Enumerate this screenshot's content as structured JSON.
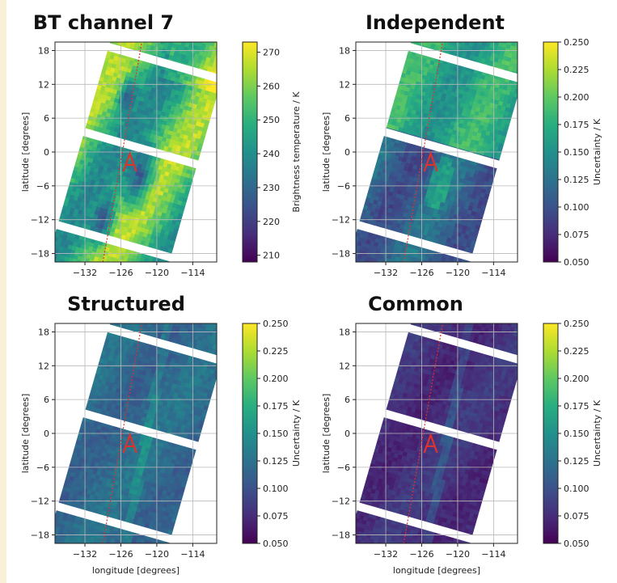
{
  "colormap": "viridis",
  "track_color": "#e0312a",
  "chart_data": [
    {
      "type": "heatmap",
      "title": "BT channel 7",
      "xlabel": "",
      "ylabel": "latitude [degrees]",
      "xticks": [
        "−132",
        "−126",
        "−120",
        "−114"
      ],
      "xtick_values": [
        -132,
        -126,
        -120,
        -114
      ],
      "yticks": [
        "18",
        "12",
        "6",
        "0",
        "−6",
        "−12",
        "−18"
      ],
      "ytick_values": [
        18,
        12,
        6,
        0,
        -6,
        -12,
        -18
      ],
      "xlim": [
        -137,
        -110
      ],
      "ylim": [
        -19.5,
        19.5
      ],
      "colorbar": {
        "label": "Brightness temperature / K",
        "ticks": [
          "270",
          "260",
          "250",
          "240",
          "230",
          "220",
          "210"
        ],
        "tick_values": [
          270,
          260,
          250,
          240,
          230,
          220,
          210
        ],
        "range": [
          208,
          273
        ]
      },
      "grid": true
    },
    {
      "type": "heatmap",
      "title": "Independent",
      "xlabel": "",
      "ylabel": "latitude [degrees]",
      "xticks": [
        "−132",
        "−126",
        "−120",
        "−114"
      ],
      "xtick_values": [
        -132,
        -126,
        -120,
        -114
      ],
      "yticks": [
        "18",
        "12",
        "6",
        "0",
        "−6",
        "−12",
        "−18"
      ],
      "ytick_values": [
        18,
        12,
        6,
        0,
        -6,
        -12,
        -18
      ],
      "xlim": [
        -137,
        -110
      ],
      "ylim": [
        -19.5,
        19.5
      ],
      "colorbar": {
        "label": "Uncertainty / K",
        "ticks": [
          "0.250",
          "0.225",
          "0.200",
          "0.175",
          "0.150",
          "0.125",
          "0.100",
          "0.075",
          "0.050"
        ],
        "tick_values": [
          0.25,
          0.225,
          0.2,
          0.175,
          0.15,
          0.125,
          0.1,
          0.075,
          0.05
        ],
        "range": [
          0.05,
          0.25
        ]
      },
      "grid": true
    },
    {
      "type": "heatmap",
      "title": "Structured",
      "xlabel": "longitude [degrees]",
      "ylabel": "latitude [degrees]",
      "xticks": [
        "−132",
        "−126",
        "−120",
        "−114"
      ],
      "xtick_values": [
        -132,
        -126,
        -120,
        -114
      ],
      "yticks": [
        "18",
        "12",
        "6",
        "0",
        "−6",
        "−12",
        "−18"
      ],
      "ytick_values": [
        18,
        12,
        6,
        0,
        -6,
        -12,
        -18
      ],
      "xlim": [
        -137,
        -110
      ],
      "ylim": [
        -19.5,
        19.5
      ],
      "colorbar": {
        "label": "Uncertainty / K",
        "ticks": [
          "0.250",
          "0.225",
          "0.200",
          "0.175",
          "0.150",
          "0.125",
          "0.100",
          "0.075",
          "0.050"
        ],
        "tick_values": [
          0.25,
          0.225,
          0.2,
          0.175,
          0.15,
          0.125,
          0.1,
          0.075,
          0.05
        ],
        "range": [
          0.05,
          0.25
        ]
      },
      "grid": true
    },
    {
      "type": "heatmap",
      "title": "Common",
      "xlabel": "longitude [degrees]",
      "ylabel": "latitude [degrees]",
      "xticks": [
        "−132",
        "−126",
        "−120",
        "−114"
      ],
      "xtick_values": [
        -132,
        -126,
        -120,
        -114
      ],
      "yticks": [
        "18",
        "12",
        "6",
        "0",
        "−6",
        "−12",
        "−18"
      ],
      "ytick_values": [
        18,
        12,
        6,
        0,
        -6,
        -12,
        -18
      ],
      "xlim": [
        -137,
        -110
      ],
      "ylim": [
        -19.5,
        19.5
      ],
      "colorbar": {
        "label": "Uncertainty / K",
        "ticks": [
          "0.250",
          "0.225",
          "0.200",
          "0.175",
          "0.150",
          "0.125",
          "0.100",
          "0.075",
          "0.050"
        ],
        "tick_values": [
          0.25,
          0.225,
          0.2,
          0.175,
          0.15,
          0.125,
          0.1,
          0.075,
          0.05
        ],
        "range": [
          0.05,
          0.25
        ]
      },
      "grid": true
    }
  ]
}
